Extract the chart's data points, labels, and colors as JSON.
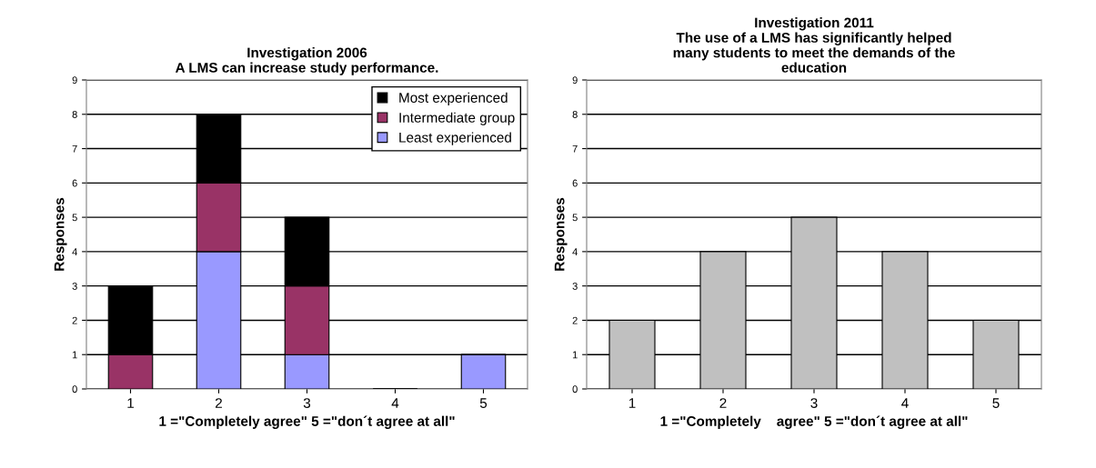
{
  "chart_data": [
    {
      "type": "bar",
      "title": "Investigation 2006\nA LMS can increase study performance.",
      "xlabel": "1 =\"Completely agree\" 5 =\"don´t agree at all\"",
      "ylabel": "Responses",
      "categories": [
        "1",
        "2",
        "3",
        "4",
        "5"
      ],
      "stacked": true,
      "series": [
        {
          "name": "Least experienced",
          "color": "#9999ff",
          "values": [
            0,
            4,
            1,
            0,
            1
          ]
        },
        {
          "name": "Intermediate group",
          "color": "#993366",
          "values": [
            1,
            2,
            2,
            0,
            0
          ]
        },
        {
          "name": "Most experienced",
          "color": "#000000",
          "values": [
            2,
            2,
            2,
            0,
            0
          ]
        }
      ],
      "ylim": [
        0,
        9
      ],
      "yticks": [
        0,
        1,
        2,
        3,
        4,
        5,
        6,
        7,
        8,
        9
      ],
      "grid": "y",
      "legend": "top right"
    },
    {
      "type": "bar",
      "title": "Investigation 2011\nThe use of a LMS has significantly helped\nmany students to meet the demands of the\neducation",
      "xlabel": "1 =\"Completely    agree\" 5 =\"don´t agree at all\"",
      "ylabel": "Responses",
      "categories": [
        "1",
        "2",
        "3",
        "4",
        "5"
      ],
      "series": [
        {
          "color": "#c0c0c0",
          "values": [
            2,
            4,
            5,
            4,
            2
          ]
        }
      ],
      "ylim": [
        0,
        9
      ],
      "yticks": [
        0,
        1,
        2,
        3,
        4,
        5,
        6,
        7,
        8,
        9
      ],
      "grid": "y"
    }
  ]
}
